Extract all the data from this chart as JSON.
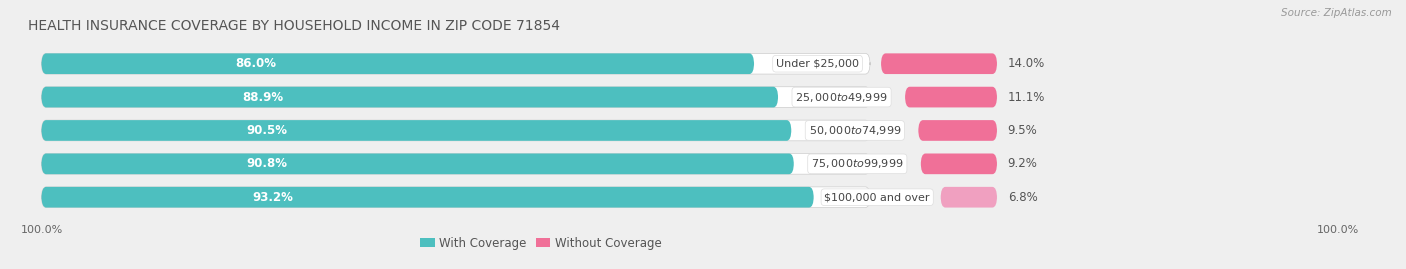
{
  "title": "HEALTH INSURANCE COVERAGE BY HOUSEHOLD INCOME IN ZIP CODE 71854",
  "source": "Source: ZipAtlas.com",
  "categories": [
    "Under $25,000",
    "$25,000 to $49,999",
    "$50,000 to $74,999",
    "$75,000 to $99,999",
    "$100,000 and over"
  ],
  "with_coverage": [
    86.0,
    88.9,
    90.5,
    90.8,
    93.2
  ],
  "without_coverage": [
    14.0,
    11.1,
    9.5,
    9.2,
    6.8
  ],
  "color_with": "#4dbfbf",
  "color_without": "#f07098",
  "color_without_last": "#f0a0c0",
  "bar_height": 0.62,
  "background_color": "#efefef",
  "bar_bg_color": "#dcdce8",
  "title_fontsize": 10,
  "label_fontsize": 8.5,
  "legend_fontsize": 8.5,
  "axis_label_fontsize": 8
}
